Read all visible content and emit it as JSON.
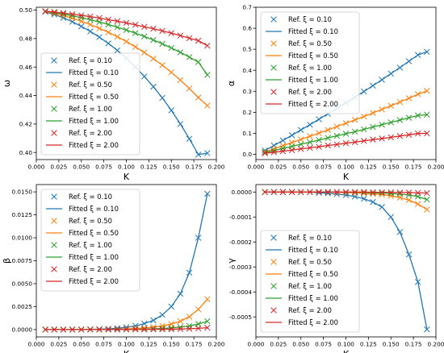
{
  "colors": {
    "0.10": "#1f77b4",
    "0.50": "#ff7f0e",
    "1.00": "#2ca02c",
    "2.00": "#d62728"
  },
  "legend": [
    "Ref. ξ = 0.10",
    "Fitted ξ = 0.10",
    "Ref. ξ = 0.50",
    "Fitted ξ = 0.50",
    "Ref. ξ = 1.00",
    "Fitted ξ = 1.00",
    "Ref. ξ = 2.00",
    "Fitted ξ = 2.00"
  ],
  "chart_data": [
    {
      "type": "line",
      "xlabel": "K",
      "ylabel": "ω",
      "xlim": [
        0.0,
        0.2
      ],
      "ylim": [
        0.395,
        0.502
      ],
      "xticks": [
        "0.000",
        "0.025",
        "0.050",
        "0.075",
        "0.100",
        "0.125",
        "0.150",
        "0.175",
        "0.200"
      ],
      "yticks": [
        "0.40",
        "0.42",
        "0.44",
        "0.46",
        "0.48",
        "0.50"
      ],
      "legend_position": "lower-left",
      "x": [
        0.01,
        0.02,
        0.03,
        0.04,
        0.05,
        0.06,
        0.07,
        0.08,
        0.09,
        0.1,
        0.11,
        0.12,
        0.13,
        0.14,
        0.15,
        0.16,
        0.17,
        0.18,
        0.19
      ],
      "series": [
        {
          "name": "ξ = 0.10",
          "ref": [
            0.4988,
            0.497,
            0.4946,
            0.4918,
            0.4886,
            0.485,
            0.481,
            0.4766,
            0.4717,
            0.4662,
            0.4601,
            0.4534,
            0.4462,
            0.4383,
            0.4296,
            0.42,
            0.4096,
            0.3985,
            0.3995
          ]
        },
        {
          "name": "ξ = 0.50",
          "ref": [
            0.499,
            0.4977,
            0.4961,
            0.4943,
            0.4922,
            0.4898,
            0.4872,
            0.4844,
            0.4813,
            0.4779,
            0.4742,
            0.4702,
            0.4659,
            0.4613,
            0.4563,
            0.4508,
            0.4449,
            0.4386,
            0.433
          ]
        },
        {
          "name": "ξ = 1.00",
          "ref": [
            0.4991,
            0.4982,
            0.4972,
            0.496,
            0.4947,
            0.4932,
            0.4916,
            0.4899,
            0.488,
            0.486,
            0.4838,
            0.4815,
            0.479,
            0.4763,
            0.4734,
            0.4703,
            0.467,
            0.4635,
            0.4545
          ]
        },
        {
          "name": "ξ = 2.00",
          "ref": [
            0.4992,
            0.4986,
            0.4979,
            0.4971,
            0.4963,
            0.4954,
            0.4944,
            0.4933,
            0.4922,
            0.491,
            0.4897,
            0.4883,
            0.4869,
            0.4854,
            0.4838,
            0.4821,
            0.4803,
            0.4785,
            0.475
          ]
        }
      ]
    },
    {
      "type": "line",
      "xlabel": "K",
      "ylabel": "α",
      "xlim": [
        0.0,
        0.2
      ],
      "ylim": [
        -0.025,
        0.7
      ],
      "xticks": [
        "0.000",
        "0.025",
        "0.050",
        "0.075",
        "0.100",
        "0.125",
        "0.150",
        "0.175",
        "0.200"
      ],
      "yticks": [
        "0.0",
        "0.1",
        "0.2",
        "0.3",
        "0.4",
        "0.5",
        "0.6",
        "0.7"
      ],
      "legend_position": "upper-left",
      "x": [
        0.01,
        0.02,
        0.03,
        0.04,
        0.05,
        0.06,
        0.07,
        0.08,
        0.09,
        0.1,
        0.11,
        0.12,
        0.13,
        0.14,
        0.15,
        0.16,
        0.17,
        0.18,
        0.19
      ],
      "series": [
        {
          "name": "ξ = 0.10",
          "ref": [
            0.018,
            0.042,
            0.066,
            0.091,
            0.116,
            0.141,
            0.167,
            0.193,
            0.219,
            0.245,
            0.272,
            0.299,
            0.327,
            0.355,
            0.384,
            0.413,
            0.443,
            0.473,
            0.488
          ]
        },
        {
          "name": "ξ = 0.50",
          "ref": [
            0.011,
            0.026,
            0.041,
            0.056,
            0.071,
            0.086,
            0.101,
            0.116,
            0.132,
            0.148,
            0.164,
            0.18,
            0.197,
            0.214,
            0.231,
            0.249,
            0.267,
            0.286,
            0.302
          ]
        },
        {
          "name": "ξ = 1.00",
          "ref": [
            0.008,
            0.018,
            0.028,
            0.038,
            0.048,
            0.058,
            0.068,
            0.078,
            0.088,
            0.098,
            0.108,
            0.119,
            0.13,
            0.141,
            0.152,
            0.163,
            0.174,
            0.185,
            0.189
          ]
        },
        {
          "name": "ξ = 2.00",
          "ref": [
            0.005,
            0.01,
            0.015,
            0.02,
            0.026,
            0.031,
            0.036,
            0.042,
            0.047,
            0.053,
            0.058,
            0.064,
            0.07,
            0.075,
            0.081,
            0.087,
            0.093,
            0.099,
            0.1
          ]
        }
      ]
    },
    {
      "type": "line",
      "xlabel": "K",
      "ylabel": "β",
      "xlim": [
        0.0,
        0.2
      ],
      "ylim": [
        -0.0008,
        0.0158
      ],
      "xticks": [
        "0.000",
        "0.025",
        "0.050",
        "0.075",
        "0.100",
        "0.125",
        "0.150",
        "0.175",
        "0.200"
      ],
      "yticks": [
        "0.0000",
        "0.0025",
        "0.0050",
        "0.0075",
        "0.0100",
        "0.0125",
        "0.0150"
      ],
      "legend_position": "upper-left",
      "x": [
        0.01,
        0.02,
        0.03,
        0.04,
        0.05,
        0.06,
        0.07,
        0.08,
        0.09,
        0.1,
        0.11,
        0.12,
        0.13,
        0.14,
        0.15,
        0.16,
        0.17,
        0.18,
        0.19
      ],
      "series": [
        {
          "name": "ξ = 0.10",
          "ref": [
            0.0,
            0.0,
            0.0,
            0.0,
            1e-05,
            2e-05,
            4e-05,
            8e-05,
            0.00014,
            0.00024,
            0.0004,
            0.00065,
            0.001,
            0.0016,
            0.0025,
            0.0039,
            0.0062,
            0.01,
            0.0148
          ]
        },
        {
          "name": "ξ = 0.50",
          "ref": [
            0.0,
            0.0,
            0.0,
            0.0,
            0.0,
            0.0,
            1e-05,
            2e-05,
            4e-05,
            7e-05,
            0.00011,
            0.00017,
            0.00026,
            0.0004,
            0.0006,
            0.0009,
            0.0014,
            0.0022,
            0.0033
          ]
        },
        {
          "name": "ξ = 1.00",
          "ref": [
            0.0,
            0.0,
            0.0,
            0.0,
            0.0,
            0.0,
            0.0,
            1e-05,
            1e-05,
            2e-05,
            3e-05,
            5e-05,
            8e-05,
            0.00012,
            0.00018,
            0.00027,
            0.0004,
            0.0006,
            0.0009
          ]
        },
        {
          "name": "ξ = 2.00",
          "ref": [
            0.0,
            0.0,
            0.0,
            0.0,
            0.0,
            0.0,
            0.0,
            0.0,
            0.0,
            1e-05,
            1e-05,
            1e-05,
            2e-05,
            3e-05,
            4e-05,
            6e-05,
            9e-05,
            0.00013,
            0.0002
          ]
        }
      ]
    },
    {
      "type": "line",
      "xlabel": "K",
      "ylabel": "γ",
      "xlim": [
        0.0,
        0.2
      ],
      "ylim": [
        -0.00058,
        3e-05
      ],
      "xticks": [
        "0.000",
        "0.025",
        "0.050",
        "0.075",
        "0.100",
        "0.125",
        "0.150",
        "0.175",
        "0.200"
      ],
      "yticks": [
        "0.0000",
        "-0.0001",
        "-0.0002",
        "-0.0003",
        "-0.0004",
        "-0.0005"
      ],
      "legend_position": "lower-left",
      "x": [
        0.01,
        0.02,
        0.03,
        0.04,
        0.05,
        0.06,
        0.07,
        0.08,
        0.09,
        0.1,
        0.11,
        0.12,
        0.13,
        0.14,
        0.15,
        0.16,
        0.17,
        0.18,
        0.19
      ],
      "series": [
        {
          "name": "ξ = 0.10",
          "ref": [
            0.0,
            0.0,
            0.0,
            0.0,
            0.0,
            0.0,
            -3e-06,
            -5e-06,
            -8e-06,
            -1.2e-05,
            -1.8e-05,
            -2.7e-05,
            -4e-05,
            -6e-05,
            -0.0001,
            -0.00016,
            -0.00025,
            -0.00036,
            -0.00055
          ]
        },
        {
          "name": "ξ = 0.50",
          "ref": [
            0.0,
            0.0,
            0.0,
            0.0,
            0.0,
            0.0,
            0.0,
            0.0,
            -1e-06,
            -2e-06,
            -3e-06,
            -5e-06,
            -7e-06,
            -1e-05,
            -1.5e-05,
            -2.2e-05,
            -3.2e-05,
            -4.8e-05,
            -7e-05
          ]
        },
        {
          "name": "ξ = 1.00",
          "ref": [
            0.0,
            0.0,
            0.0,
            0.0,
            0.0,
            0.0,
            0.0,
            0.0,
            0.0,
            -1e-06,
            -1e-06,
            -2e-06,
            -3e-06,
            -4e-06,
            -6e-06,
            -8e-06,
            -1.2e-05,
            -1.8e-05,
            -3e-05
          ]
        },
        {
          "name": "ξ = 2.00",
          "ref": [
            0.0,
            0.0,
            0.0,
            0.0,
            0.0,
            0.0,
            0.0,
            0.0,
            0.0,
            0.0,
            0.0,
            0.0,
            -1e-06,
            -1e-06,
            -1e-06,
            -2e-06,
            -2e-06,
            -3e-06,
            -4e-06
          ]
        }
      ]
    }
  ]
}
